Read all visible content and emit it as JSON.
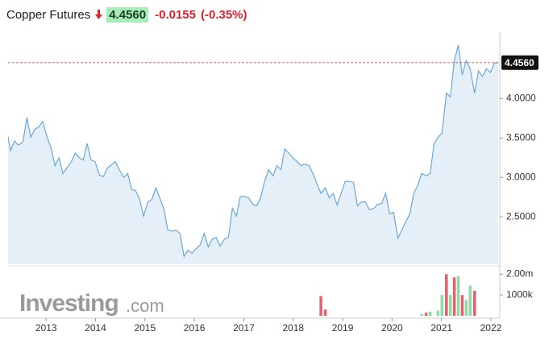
{
  "chart_data": [
    {
      "type": "area",
      "title": "Copper Futures",
      "price_label": "4.4560",
      "change": "-0.0155",
      "change_percent": "(-0.35%)",
      "x": [
        2012.2,
        2012.28,
        2012.36,
        2012.44,
        2012.53,
        2012.61,
        2012.69,
        2012.77,
        2012.85,
        2012.93,
        2013.02,
        2013.1,
        2013.18,
        2013.26,
        2013.34,
        2013.42,
        2013.51,
        2013.59,
        2013.67,
        2013.75,
        2013.83,
        2013.91,
        2013.99,
        2014.08,
        2014.16,
        2014.24,
        2014.32,
        2014.4,
        2014.48,
        2014.57,
        2014.65,
        2014.73,
        2014.81,
        2014.89,
        2014.97,
        2015.06,
        2015.14,
        2015.22,
        2015.3,
        2015.38,
        2015.46,
        2015.55,
        2015.63,
        2015.71,
        2015.79,
        2015.87,
        2015.95,
        2016.04,
        2016.12,
        2016.2,
        2016.28,
        2016.36,
        2016.44,
        2016.52,
        2016.61,
        2016.69,
        2016.77,
        2016.85,
        2016.93,
        2017.01,
        2017.1,
        2017.18,
        2017.26,
        2017.34,
        2017.42,
        2017.5,
        2017.59,
        2017.67,
        2017.75,
        2017.83,
        2017.91,
        2017.99,
        2018.08,
        2018.16,
        2018.24,
        2018.32,
        2018.4,
        2018.48,
        2018.56,
        2018.65,
        2018.73,
        2018.81,
        2018.89,
        2018.97,
        2019.05,
        2019.14,
        2019.22,
        2019.3,
        2019.38,
        2019.46,
        2019.54,
        2019.63,
        2019.71,
        2019.79,
        2019.87,
        2019.95,
        2020.03,
        2020.12,
        2020.2,
        2020.28,
        2020.36,
        2020.44,
        2020.52,
        2020.6,
        2020.69,
        2020.77,
        2020.85,
        2020.93,
        2021.01,
        2021.1,
        2021.18,
        2021.26,
        2021.34,
        2021.42,
        2021.5,
        2021.58,
        2021.67,
        2021.75,
        2021.83,
        2021.91,
        2021.99,
        2022.07,
        2022.15
      ],
      "series": [
        {
          "color": "#6aa8d8",
          "fill": "#e4eff8",
          "values": [
            3.61,
            3.34,
            3.46,
            3.41,
            3.45,
            3.76,
            3.51,
            3.61,
            3.64,
            3.71,
            3.51,
            3.38,
            3.15,
            3.25,
            3.05,
            3.12,
            3.2,
            3.31,
            3.25,
            3.22,
            3.43,
            3.22,
            3.2,
            3.03,
            3.01,
            3.12,
            3.16,
            3.2,
            3.1,
            3.0,
            3.05,
            2.85,
            2.83,
            2.73,
            2.51,
            2.69,
            2.72,
            2.87,
            2.74,
            2.61,
            2.34,
            2.32,
            2.33,
            2.29,
            2.0,
            2.08,
            2.04,
            2.1,
            2.15,
            2.29,
            2.12,
            2.22,
            2.24,
            2.13,
            2.22,
            2.24,
            2.61,
            2.51,
            2.76,
            2.76,
            2.74,
            2.66,
            2.64,
            2.74,
            2.95,
            3.1,
            3.02,
            3.15,
            3.1,
            3.36,
            3.31,
            3.25,
            3.2,
            3.15,
            3.17,
            3.15,
            3.05,
            2.92,
            2.8,
            2.87,
            2.74,
            2.8,
            2.65,
            2.8,
            2.95,
            2.95,
            2.94,
            2.64,
            2.69,
            2.69,
            2.59,
            2.61,
            2.66,
            2.67,
            2.8,
            2.54,
            2.56,
            2.23,
            2.34,
            2.44,
            2.54,
            2.8,
            2.9,
            3.05,
            3.02,
            3.05,
            3.43,
            3.51,
            3.56,
            4.07,
            4.02,
            4.48,
            4.68,
            4.3,
            4.48,
            4.38,
            4.07,
            4.35,
            4.28,
            4.38,
            4.33,
            4.45,
            4.456
          ]
        }
      ],
      "xlim": [
        2012.23,
        2022.18
      ],
      "ylim": [
        1.9,
        4.79
      ],
      "yticks": [
        {
          "value": 2.5,
          "label": "2.5000"
        },
        {
          "value": 3,
          "label": "3.0000"
        },
        {
          "value": 3.5,
          "label": "3.5000"
        },
        {
          "value": 4,
          "label": "4.0000"
        }
      ],
      "last_line_color": "#e06666",
      "grid": false
    },
    {
      "type": "bar",
      "watermark": "Investing",
      "watermark_suffix": ".com",
      "x": [
        2018.56,
        2018.65,
        2020.6,
        2020.69,
        2020.77,
        2020.93,
        2021.01,
        2021.1,
        2021.18,
        2021.26,
        2021.34,
        2021.42,
        2021.5,
        2021.58,
        2021.67
      ],
      "values": [
        950000,
        300000,
        80000,
        150000,
        200000,
        250000,
        1000000,
        2000000,
        1000000,
        1850000,
        1900000,
        1000000,
        750000,
        1450000,
        1200000
      ],
      "colors": [
        "#e4606d",
        "#e4606d",
        "#8fd9a8",
        "#e4606d",
        "#8fd9a8",
        "#8fd9a8",
        "#8fd9a8",
        "#e4606d",
        "#8fd9a8",
        "#e4606d",
        "#8fd9a8",
        "#e4606d",
        "#8fd9a8",
        "#8fd9a8",
        "#e4606d"
      ],
      "xlim": [
        2012.23,
        2022.18
      ],
      "ylim": [
        0,
        2400000
      ],
      "yticks": [
        {
          "value": 1000000,
          "label": "1000k"
        },
        {
          "value": 2000000,
          "label": "2.00m"
        }
      ],
      "xticks": [
        2013,
        2014,
        2015,
        2016,
        2017,
        2018,
        2019,
        2020,
        2021,
        2022
      ]
    }
  ]
}
